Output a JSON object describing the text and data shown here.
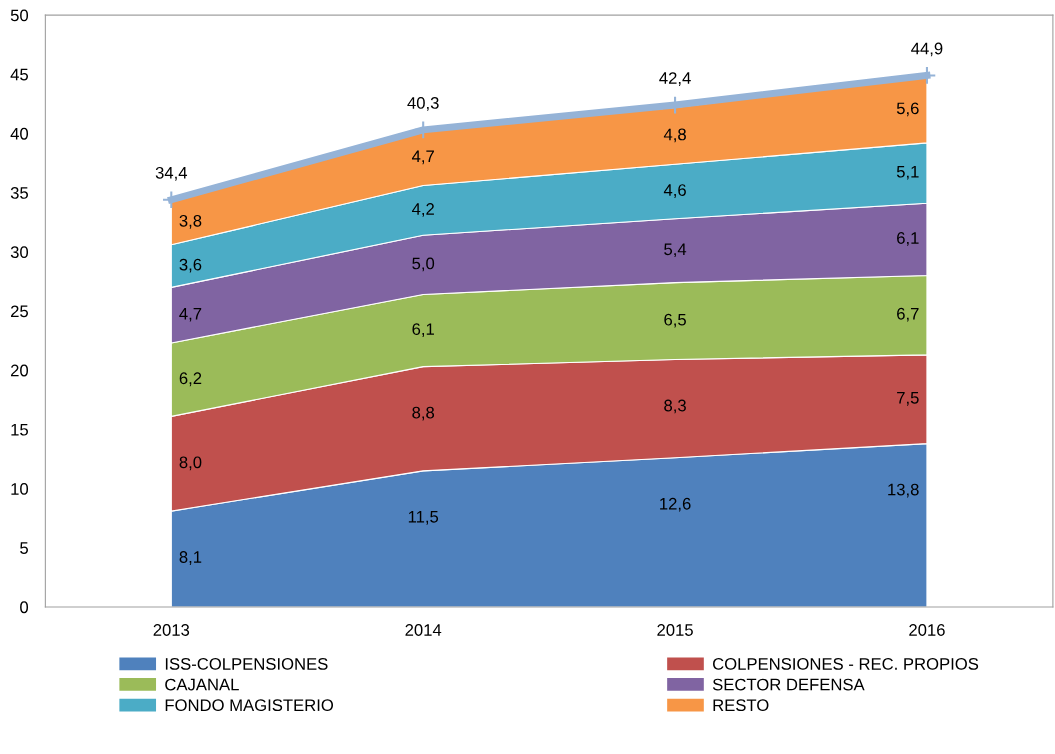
{
  "chart_data": {
    "type": "area",
    "stacked": true,
    "categories": [
      "2013",
      "2014",
      "2015",
      "2016"
    ],
    "ylim": [
      0,
      50
    ],
    "yticks": [
      0,
      5,
      10,
      15,
      20,
      25,
      30,
      35,
      40,
      45,
      50
    ],
    "grid": false,
    "legend": "bottom",
    "series": [
      {
        "name": "ISS-COLPENSIONES",
        "color": "#4f81bd",
        "values": [
          8.1,
          11.5,
          12.6,
          13.8
        ],
        "value_labels": [
          "8,1",
          "11,5",
          "12,6",
          "13,8"
        ]
      },
      {
        "name": "COLPENSIONES - REC. PROPIOS",
        "color": "#c0504d",
        "values": [
          8.0,
          8.8,
          8.3,
          7.5
        ],
        "value_labels": [
          "8,0",
          "8,8",
          "8,3",
          "7,5"
        ]
      },
      {
        "name": "CAJANAL",
        "color": "#9bbb59",
        "values": [
          6.2,
          6.1,
          6.5,
          6.7
        ],
        "value_labels": [
          "6,2",
          "6,1",
          "6,5",
          "6,7"
        ]
      },
      {
        "name": "SECTOR DEFENSA",
        "color": "#8064a2",
        "values": [
          4.7,
          5.0,
          5.4,
          6.1
        ],
        "value_labels": [
          "4,7",
          "5,0",
          "5,4",
          "6,1"
        ]
      },
      {
        "name": "FONDO MAGISTERIO",
        "color": "#4bacc6",
        "values": [
          3.6,
          4.2,
          4.6,
          5.1
        ],
        "value_labels": [
          "3,6",
          "4,2",
          "4,6",
          "5,1"
        ]
      },
      {
        "name": "RESTO",
        "color": "#f79646",
        "values": [
          3.8,
          4.7,
          4.8,
          5.6
        ],
        "value_labels": [
          "3,8",
          "4,7",
          "4,8",
          "5,6"
        ]
      },
      {
        "type": "line",
        "color": "#95b3d7",
        "marker": "cross",
        "values": [
          34.4,
          40.3,
          42.4,
          44.9
        ],
        "value_labels": [
          "34,4",
          "40,3",
          "42,4",
          "44,9"
        ]
      }
    ]
  }
}
